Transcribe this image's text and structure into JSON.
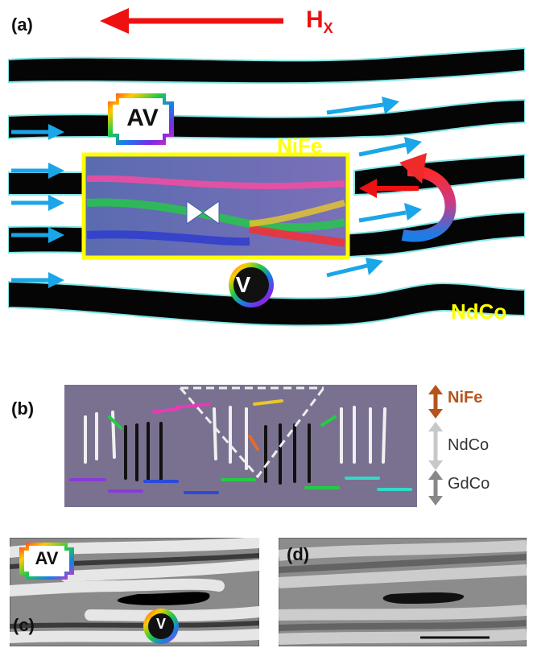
{
  "panel_labels": {
    "a": "(a)",
    "b": "(b)",
    "c": "(c)",
    "d": "(d)"
  },
  "field": {
    "label_main": "H",
    "label_sub": "X",
    "color": "#ee1111"
  },
  "panel_a": {
    "av_label": "AV",
    "v_label": "V",
    "nife_label": "NiFe",
    "ndco_label": "NdCo",
    "box_color": "#ffff00",
    "arrow_color": "#1aa6e8"
  },
  "panel_b": {
    "layers": [
      {
        "label": "NiFe",
        "color": "#b5541a"
      },
      {
        "label": "NdCo",
        "color": "#333333"
      },
      {
        "label": "GdCo",
        "color": "#333333"
      }
    ]
  },
  "panel_c": {
    "av_label": "AV",
    "v_label": "V"
  }
}
